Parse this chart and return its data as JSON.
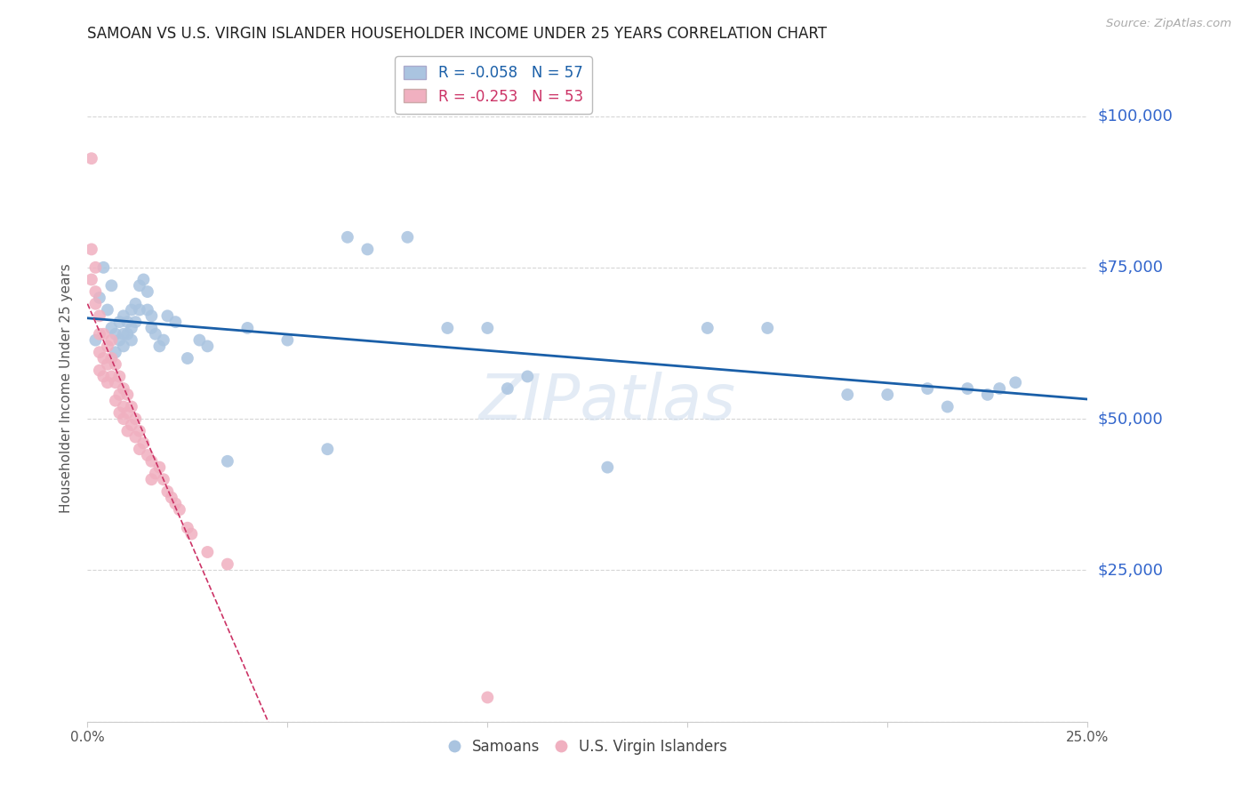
{
  "title": "SAMOAN VS U.S. VIRGIN ISLANDER HOUSEHOLDER INCOME UNDER 25 YEARS CORRELATION CHART",
  "source": "Source: ZipAtlas.com",
  "ylabel": "Householder Income Under 25 years",
  "xlim": [
    0.0,
    0.25
  ],
  "ylim": [
    0,
    110000
  ],
  "yticks": [
    0,
    25000,
    50000,
    75000,
    100000
  ],
  "ytick_labels": [
    "",
    "$25,000",
    "$50,000",
    "$75,000",
    "$100,000"
  ],
  "background_color": "#ffffff",
  "grid_color": "#cccccc",
  "title_color": "#222222",
  "source_color": "#aaaaaa",
  "blue_color": "#aac4e0",
  "pink_color": "#f0b0c0",
  "blue_line_color": "#1a5fa8",
  "pink_line_color": "#cc3366",
  "right_label_color": "#3366cc",
  "legend_blue_label": "R = -0.058   N = 57",
  "legend_pink_label": "R = -0.253   N = 53",
  "samoan_x": [
    0.002,
    0.003,
    0.004,
    0.005,
    0.006,
    0.006,
    0.007,
    0.007,
    0.008,
    0.008,
    0.009,
    0.009,
    0.009,
    0.01,
    0.01,
    0.011,
    0.011,
    0.011,
    0.012,
    0.012,
    0.013,
    0.013,
    0.014,
    0.015,
    0.015,
    0.016,
    0.016,
    0.017,
    0.018,
    0.019,
    0.02,
    0.022,
    0.025,
    0.028,
    0.03,
    0.035,
    0.04,
    0.05,
    0.06,
    0.065,
    0.07,
    0.08,
    0.09,
    0.1,
    0.105,
    0.11,
    0.13,
    0.155,
    0.17,
    0.19,
    0.2,
    0.21,
    0.215,
    0.22,
    0.225,
    0.228,
    0.232
  ],
  "samoan_y": [
    63000,
    70000,
    75000,
    68000,
    65000,
    72000,
    64000,
    61000,
    66000,
    63000,
    67000,
    64000,
    62000,
    66000,
    64000,
    68000,
    65000,
    63000,
    69000,
    66000,
    72000,
    68000,
    73000,
    71000,
    68000,
    67000,
    65000,
    64000,
    62000,
    63000,
    67000,
    66000,
    60000,
    63000,
    62000,
    43000,
    65000,
    63000,
    45000,
    80000,
    78000,
    80000,
    65000,
    65000,
    55000,
    57000,
    42000,
    65000,
    65000,
    54000,
    54000,
    55000,
    52000,
    55000,
    54000,
    55000,
    56000
  ],
  "virgin_x": [
    0.001,
    0.001,
    0.001,
    0.002,
    0.002,
    0.002,
    0.003,
    0.003,
    0.003,
    0.003,
    0.004,
    0.004,
    0.004,
    0.005,
    0.005,
    0.005,
    0.006,
    0.006,
    0.006,
    0.007,
    0.007,
    0.007,
    0.008,
    0.008,
    0.008,
    0.009,
    0.009,
    0.009,
    0.01,
    0.01,
    0.01,
    0.011,
    0.011,
    0.012,
    0.012,
    0.013,
    0.013,
    0.014,
    0.015,
    0.016,
    0.016,
    0.017,
    0.018,
    0.019,
    0.02,
    0.021,
    0.022,
    0.023,
    0.025,
    0.026,
    0.03,
    0.035,
    0.1
  ],
  "virgin_y": [
    93000,
    78000,
    73000,
    75000,
    71000,
    69000,
    67000,
    64000,
    61000,
    58000,
    64000,
    60000,
    57000,
    62000,
    59000,
    56000,
    63000,
    60000,
    57000,
    59000,
    56000,
    53000,
    57000,
    54000,
    51000,
    55000,
    52000,
    50000,
    54000,
    51000,
    48000,
    52000,
    49000,
    50000,
    47000,
    48000,
    45000,
    46000,
    44000,
    43000,
    40000,
    41000,
    42000,
    40000,
    38000,
    37000,
    36000,
    35000,
    32000,
    31000,
    28000,
    26000,
    4000
  ]
}
